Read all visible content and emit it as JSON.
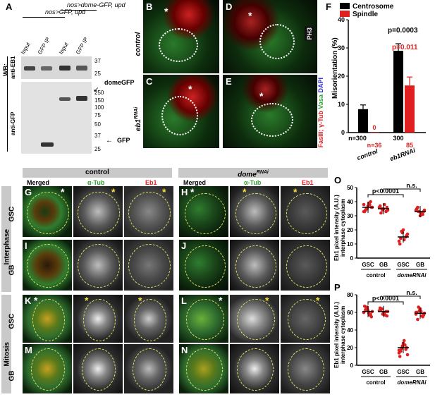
{
  "panels": {
    "A": {
      "label": "A",
      "lane_groups": [
        "nos>GFP, upd",
        "nos>dome-GFP, upd"
      ],
      "lanes": [
        "Input",
        "GFP IP",
        "Input",
        "GFP IP"
      ],
      "wb": "WB:",
      "anti_eb1": "anti-EB1",
      "anti_gfp": "anti-GFP",
      "mw_top": [
        "37",
        "25"
      ],
      "mw_bottom": [
        "250",
        "150",
        "100",
        "75",
        "50",
        "37",
        "25"
      ],
      "band_dome": "domeGFP",
      "band_gfp": "GFP"
    },
    "B": {
      "label": "B"
    },
    "C": {
      "label": "C"
    },
    "D": {
      "label": "D"
    },
    "E": {
      "label": "E"
    },
    "row_labels": {
      "control": "control",
      "eb1": "eb1",
      "eb1_sup": "RNAi"
    },
    "stain_legend": {
      "fas": "FasIII",
      "tub": "γ-Tub",
      "vasa": "Vasa",
      "dapi": "DAPI",
      "ph3": "PH3"
    },
    "G": "G",
    "H": "H",
    "I": "I",
    "J": "J",
    "K": "K",
    "L": "L",
    "M": "M",
    "N": "N",
    "grid": {
      "group_control": "control",
      "group_dome": "dome",
      "group_dome_sup": "RNAi",
      "cols": [
        "Merged",
        "α-Tub",
        "Eb1",
        "Merged",
        "α-Tub",
        "Eb1"
      ],
      "row_interphase": "Interphase",
      "row_mitosis": "Mitosis",
      "gsc": "GSC",
      "gb": "GB"
    }
  },
  "chart_data": [
    {
      "panel": "F",
      "type": "bar",
      "ylabel": "Misorientation (%)",
      "ylim": [
        0,
        40
      ],
      "yticks": [
        0,
        10,
        20,
        30,
        40
      ],
      "categories": [
        "control",
        "eb1RNAi"
      ],
      "series": [
        {
          "name": "Centrosome",
          "color": "#000000",
          "values": [
            8.3,
            29.0
          ],
          "errors": [
            1.5,
            2.5
          ],
          "n": [
            "n=300",
            "300"
          ]
        },
        {
          "name": "Spindle",
          "color": "#e02020",
          "values": [
            0,
            16.7
          ],
          "errors": [
            0,
            3.0
          ],
          "n": [
            "n=36",
            "85"
          ],
          "value_labels": [
            "0",
            ""
          ]
        }
      ],
      "annotations": [
        {
          "text": "p=0.0003",
          "color": "#000000"
        },
        {
          "text": "p=0.011",
          "color": "#e02020"
        }
      ]
    },
    {
      "panel": "O",
      "type": "scatter",
      "ylabel": "Eb1 pixel intensity (A.U.) interphase cytoplasm",
      "ylim": [
        0,
        50
      ],
      "yticks": [
        0,
        10,
        20,
        30,
        40,
        50
      ],
      "categories": [
        "GSC",
        "GB",
        "GSC",
        "GB"
      ],
      "groups": [
        "control",
        "domeRNAi"
      ],
      "means": [
        36,
        35,
        15,
        33
      ],
      "points": [
        [
          38,
          35,
          40,
          33,
          37,
          36,
          34,
          39,
          36,
          35,
          38,
          33
        ],
        [
          36,
          34,
          33,
          37,
          35,
          36,
          32,
          38,
          34,
          35
        ],
        [
          12,
          18,
          15,
          10,
          20,
          16,
          14,
          13,
          17,
          19
        ],
        [
          34,
          33,
          31,
          35,
          30,
          33,
          36,
          32,
          34,
          33
        ]
      ],
      "annotations": [
        {
          "text": "p<0.0001"
        },
        {
          "text": "n.s."
        }
      ]
    },
    {
      "panel": "P",
      "type": "scatter",
      "ylabel": "Eb1 pixel intensity (A.U.) interphase cytoplasm",
      "ylim": [
        0,
        80
      ],
      "yticks": [
        0,
        20,
        40,
        60,
        80
      ],
      "categories": [
        "GSC",
        "GB",
        "GSC",
        "GB"
      ],
      "groups": [
        "control",
        "domeRNAi"
      ],
      "means": [
        61,
        61,
        20,
        59
      ],
      "points": [
        [
          60,
          64,
          58,
          67,
          62,
          55,
          63,
          59,
          61,
          65,
          57,
          60,
          66
        ],
        [
          62,
          58,
          61,
          65,
          60,
          56,
          63,
          59,
          61,
          64,
          57
        ],
        [
          14,
          22,
          18,
          10,
          25,
          20,
          16,
          28,
          12,
          19,
          23,
          17,
          21
        ],
        [
          58,
          62,
          55,
          60,
          64,
          57,
          52,
          61,
          59,
          66,
          56,
          60
        ]
      ],
      "annotations": [
        {
          "text": "p<0.0001"
        },
        {
          "text": "n.s."
        }
      ]
    }
  ]
}
